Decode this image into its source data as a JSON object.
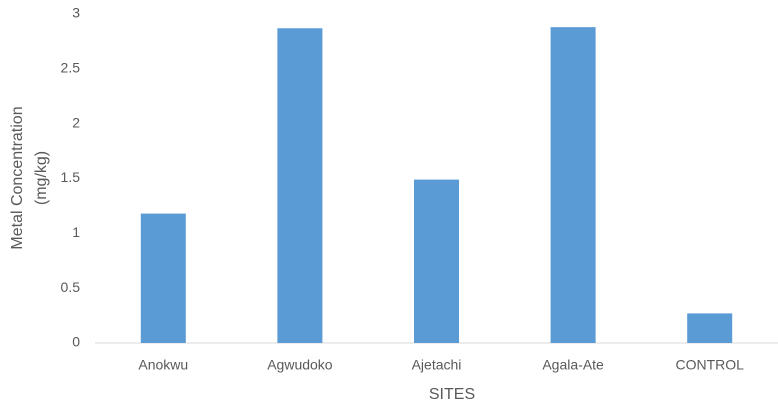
{
  "chart_data": {
    "type": "bar",
    "x_label": "SITES",
    "y_label": [
      "Metal  Concentration",
      "(mg/kg)"
    ],
    "categories": [
      "Anokwu",
      "Agwudoko",
      "Ajetachi",
      "Agala-Ate",
      "CONTROL"
    ],
    "values": [
      1.18,
      2.87,
      1.49,
      2.88,
      0.27
    ],
    "color": "#5b9bd5",
    "ylim": [
      0,
      3
    ],
    "yticks": [
      0,
      0.5,
      1,
      1.5,
      2,
      2.5,
      3
    ],
    "grid": false
  }
}
